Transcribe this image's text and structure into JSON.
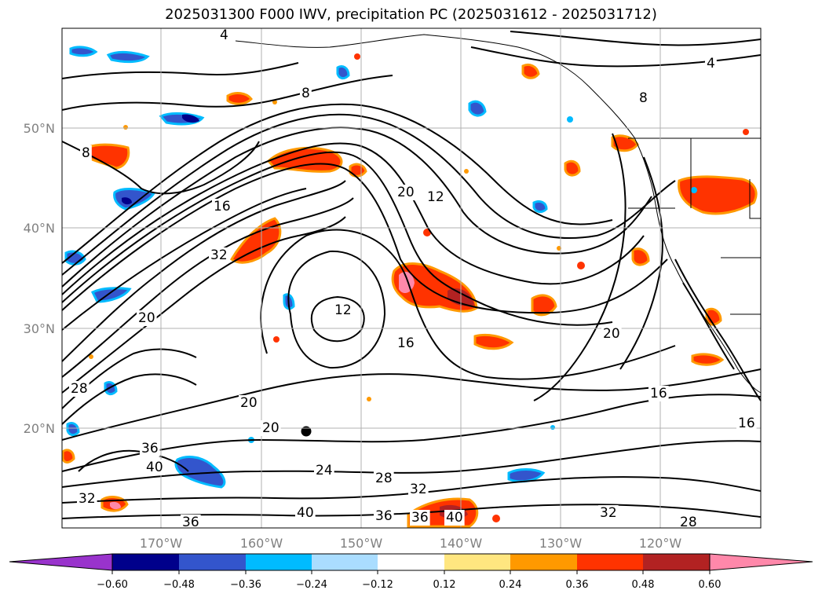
{
  "title": "2025031300 F000 IWV, precipitation PC (2025031612 - 2025031712)",
  "chart_data": {
    "type": "contour_map",
    "title": "2025031300 F000 IWV, precipitation PC (2025031612 - 2025031712)",
    "region": "North Pacific / western North America",
    "lon_range": [
      -180,
      -111
    ],
    "lat_range": [
      10,
      60
    ],
    "grid": true,
    "lat_ticks": [
      "20°N",
      "30°N",
      "40°N",
      "50°N"
    ],
    "lat_values": [
      20,
      30,
      40,
      50
    ],
    "lon_ticks": [
      "170°W",
      "160°W",
      "150°W",
      "140°W",
      "130°W",
      "120°W"
    ],
    "lon_values": [
      -170,
      -160,
      -150,
      -140,
      -130,
      -120
    ],
    "contour_labels": [
      "4",
      "4",
      "8",
      "8",
      "8",
      "12",
      "12",
      "16",
      "16",
      "16",
      "16",
      "20",
      "20",
      "20",
      "20",
      "20",
      "24",
      "28",
      "28",
      "28",
      "32",
      "32",
      "32",
      "32",
      "36",
      "36",
      "36",
      "36",
      "40",
      "40",
      "40"
    ],
    "colorbar": {
      "orientation": "horizontal",
      "extend": "both",
      "ticks": [
        "−0.60",
        "−0.48",
        "−0.36",
        "−0.24",
        "−0.12",
        "0.12",
        "0.24",
        "0.36",
        "0.48",
        "0.60"
      ],
      "colors": [
        "#9933cc",
        "#00008b",
        "#3355cc",
        "#00bbff",
        "#aaddff",
        "#ffffff",
        "#ffe680",
        "#ff9900",
        "#ff3300",
        "#b22222",
        "#ff88aa"
      ]
    }
  }
}
